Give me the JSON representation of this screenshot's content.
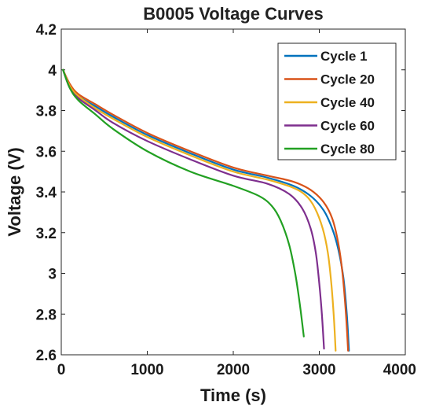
{
  "chart_data": {
    "type": "line",
    "title": "B0005 Voltage Curves",
    "xlabel": "Time (s)",
    "ylabel": "Voltage (V)",
    "xlim": [
      0,
      4000
    ],
    "ylim": [
      2.6,
      4.2
    ],
    "xticks": [
      0,
      1000,
      2000,
      3000,
      4000
    ],
    "xtick_labels": [
      "0",
      "1000",
      "2000",
      "3000",
      "4000"
    ],
    "yticks": [
      2.6,
      2.8,
      3.0,
      3.2,
      3.4,
      3.6,
      3.8,
      4.0,
      4.2
    ],
    "ytick_labels": [
      "2.6",
      "2.8",
      "3",
      "3.2",
      "3.4",
      "3.6",
      "3.8",
      "4",
      "4.2"
    ],
    "grid": false,
    "legend_position": "top-right",
    "series": [
      {
        "name": "Cycle 1",
        "color": "#0072BD",
        "x": [
          20,
          100,
          200,
          400,
          600,
          1000,
          1500,
          2000,
          2400,
          2700,
          2900,
          3050,
          3150,
          3220,
          3280,
          3320,
          3345
        ],
        "y": [
          4.0,
          3.92,
          3.87,
          3.82,
          3.77,
          3.68,
          3.59,
          3.51,
          3.47,
          3.43,
          3.38,
          3.31,
          3.22,
          3.12,
          2.98,
          2.8,
          2.62
        ]
      },
      {
        "name": "Cycle 20",
        "color": "#D95319",
        "x": [
          20,
          100,
          200,
          400,
          600,
          1000,
          1500,
          2000,
          2400,
          2700,
          2900,
          3050,
          3150,
          3220,
          3270,
          3310,
          3335
        ],
        "y": [
          4.0,
          3.93,
          3.88,
          3.83,
          3.78,
          3.69,
          3.6,
          3.52,
          3.48,
          3.45,
          3.41,
          3.35,
          3.27,
          3.15,
          3.0,
          2.8,
          2.62
        ]
      },
      {
        "name": "Cycle 40",
        "color": "#EDB120",
        "x": [
          20,
          100,
          200,
          400,
          600,
          1000,
          1500,
          2000,
          2400,
          2700,
          2850,
          2950,
          3040,
          3100,
          3140,
          3170,
          3190
        ],
        "y": [
          4.0,
          3.92,
          3.87,
          3.81,
          3.76,
          3.67,
          3.58,
          3.5,
          3.46,
          3.42,
          3.38,
          3.32,
          3.22,
          3.1,
          2.95,
          2.78,
          2.62
        ]
      },
      {
        "name": "Cycle 60",
        "color": "#7E2F8E",
        "x": [
          20,
          100,
          200,
          400,
          600,
          1000,
          1500,
          2000,
          2400,
          2650,
          2800,
          2900,
          2960,
          3000,
          3030,
          3055
        ],
        "y": [
          4.0,
          3.91,
          3.86,
          3.8,
          3.74,
          3.65,
          3.56,
          3.48,
          3.44,
          3.39,
          3.32,
          3.22,
          3.1,
          2.95,
          2.8,
          2.63
        ]
      },
      {
        "name": "Cycle 80",
        "color": "#22A022",
        "x": [
          20,
          100,
          200,
          400,
          600,
          1000,
          1500,
          2000,
          2300,
          2450,
          2550,
          2650,
          2720,
          2770,
          2800,
          2820
        ],
        "y": [
          4.0,
          3.91,
          3.85,
          3.78,
          3.71,
          3.6,
          3.5,
          3.43,
          3.38,
          3.33,
          3.26,
          3.14,
          3.0,
          2.86,
          2.76,
          2.69
        ]
      }
    ]
  }
}
